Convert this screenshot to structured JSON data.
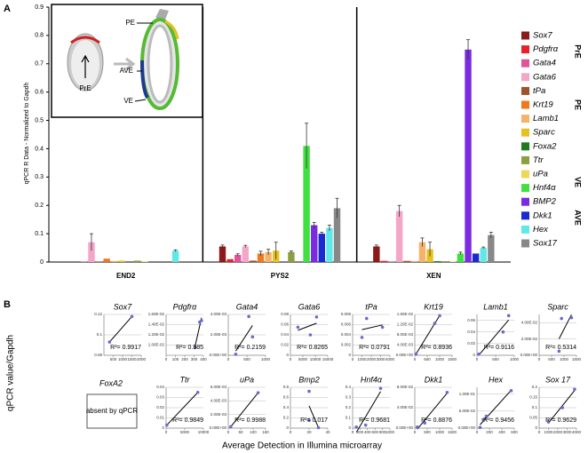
{
  "panel_labels": [
    "A",
    "B"
  ],
  "inset": {
    "labels": [
      "PrE",
      "PE",
      "AVE",
      "VE"
    ]
  },
  "absent": {
    "title": "FoxA2",
    "note": "absent by qPCR"
  },
  "shared": {
    "ylabel": "qPCR value/Gapdh",
    "xlabel": "Average Detection in Illumina microarray"
  },
  "legend_groups": [
    "PrE",
    "PE",
    "VE",
    "AVE"
  ],
  "chart_data": [
    {
      "type": "bar",
      "ylabel": "qPCR R Data - Normalized to Gapdh",
      "categories": [
        "END2",
        "PYS2",
        "XEN"
      ],
      "ylim": [
        0,
        0.9
      ],
      "yticks": [
        0,
        0.1,
        0.2,
        0.3,
        0.4,
        0.5,
        0.6,
        0.7,
        0.8,
        0.9
      ],
      "grid": false,
      "series": [
        {
          "name": "Sox7",
          "color": "#8b1a1a",
          "values": [
            0,
            0.055,
            0.055
          ],
          "errors": [
            null,
            0.005,
            0.005
          ]
        },
        {
          "name": "Pdgfrα",
          "color": "#e8202a",
          "values": [
            0,
            0.01,
            0.004
          ],
          "errors": [
            null,
            null,
            null
          ]
        },
        {
          "name": "Gata4",
          "color": "#e0559a",
          "values": [
            0.002,
            0.025,
            0.002
          ],
          "errors": [
            null,
            0.004,
            null
          ]
        },
        {
          "name": "Gata6",
          "color": "#f4a6c8",
          "values": [
            0.07,
            0.055,
            0.18
          ],
          "errors": [
            0.03,
            0.004,
            0.02
          ]
        },
        {
          "name": "tPa",
          "color": "#a0522d",
          "values": [
            0.002,
            0.005,
            0.004
          ],
          "errors": [
            null,
            null,
            null
          ]
        },
        {
          "name": "Krt19",
          "color": "#f07820",
          "values": [
            0.012,
            0.03,
            0.002
          ],
          "errors": [
            null,
            0.008,
            null
          ]
        },
        {
          "name": "Lamb1",
          "color": "#f5b26b",
          "values": [
            0.004,
            0.035,
            0.07
          ],
          "errors": [
            null,
            0.01,
            0.015
          ]
        },
        {
          "name": "Sparc",
          "color": "#e8c020",
          "values": [
            0.005,
            0.04,
            0.045
          ],
          "errors": [
            null,
            0.03,
            0.025
          ]
        },
        {
          "name": "Foxa2",
          "color": "#1f7a1f",
          "values": [
            0,
            0,
            0.003
          ],
          "errors": [
            null,
            null,
            null
          ]
        },
        {
          "name": "Ttr",
          "color": "#8aa040",
          "values": [
            0.005,
            0.035,
            0.003
          ],
          "errors": [
            null,
            0.004,
            null
          ]
        },
        {
          "name": "uPa",
          "color": "#ecd85a",
          "values": [
            0.002,
            0,
            0.002
          ],
          "errors": [
            null,
            null,
            null
          ]
        },
        {
          "name": "Hnf4α",
          "color": "#40e040",
          "values": [
            0,
            0.41,
            0.03
          ],
          "errors": [
            null,
            0.08,
            0.005
          ]
        },
        {
          "name": "BMP2",
          "color": "#7b2be0",
          "values": [
            0,
            0.13,
            0.75
          ],
          "errors": [
            null,
            0.01,
            0.035
          ]
        },
        {
          "name": "Dkk1",
          "color": "#1a2ad0",
          "values": [
            0,
            0.1,
            0.03
          ],
          "errors": [
            null,
            0.005,
            null
          ]
        },
        {
          "name": "Hex",
          "color": "#60e8e8",
          "values": [
            0.04,
            0.12,
            0.05
          ],
          "errors": [
            0.003,
            0.01,
            0.003
          ]
        },
        {
          "name": "Sox17",
          "color": "#888888",
          "values": [
            0,
            0.19,
            0.095
          ],
          "errors": [
            null,
            0.035,
            0.01
          ]
        }
      ]
    },
    {
      "type": "scatter",
      "title": "Sox7",
      "color": "#000",
      "fit": true,
      "r2": "R²= 0.9917",
      "xlim": [
        0,
        2000
      ],
      "xticks": [
        500,
        1000,
        1500,
        2000
      ],
      "ylim": [
        0.08,
        0.12
      ],
      "yticks": [
        0.08,
        0.1,
        0.12
      ],
      "x": [
        300,
        1500
      ],
      "y": [
        0.093,
        0.118
      ]
    },
    {
      "type": "scatter",
      "title": "Pdgfrα",
      "color": "#000",
      "fit": true,
      "r2": "R²= 0.985",
      "xlim": [
        0,
        400
      ],
      "xticks": [
        0,
        100,
        200,
        300,
        400
      ],
      "ylim": [
        0.008,
        0.016
      ],
      "yticks": [
        {
          "value": 0.01,
          "label": "1.00E-02"
        },
        {
          "value": 0.012,
          "label": "1.20E-02"
        },
        {
          "value": 0.014,
          "label": "1.40E-02"
        },
        {
          "value": 0.016,
          "label": "1.60E-02"
        }
      ],
      "x": [
        310,
        360,
        380
      ],
      "y": [
        0.0095,
        0.0145,
        0.0148
      ]
    },
    {
      "type": "scatter",
      "title": "Gata4",
      "color": "#e03030",
      "fit": true,
      "r2": "R²= 0.2159",
      "xlim": [
        0,
        1000
      ],
      "xticks": [
        0,
        500,
        1000
      ],
      "ylim": [
        0,
        0.004
      ],
      "yticks": [
        {
          "value": 0,
          "label": "0.00E+00"
        },
        {
          "value": 0.002,
          "label": "2.00E-03"
        },
        {
          "value": 0.004,
          "label": "4.00E-03"
        }
      ],
      "x": [
        200,
        550,
        650
      ],
      "y": [
        0.0001,
        0.0038,
        0.0018
      ]
    },
    {
      "type": "scatter",
      "title": "Gata6",
      "color": "#000",
      "fit": true,
      "r2": "R²= 0.8265",
      "xlim": [
        0,
        15000
      ],
      "xticks": [
        0,
        5000,
        10000,
        15000
      ],
      "ylim": [
        0,
        0.08
      ],
      "yticks": [
        0,
        0.02,
        0.04,
        0.06,
        0.08
      ],
      "x": [
        3000,
        8000,
        10500
      ],
      "y": [
        0.055,
        0.04,
        0.075
      ]
    },
    {
      "type": "scatter",
      "title": "tPa",
      "color": "#e03030",
      "fit": true,
      "r2": "R²= 0.0791",
      "xlim": [
        0,
        4000
      ],
      "xticks": [
        0,
        1000,
        2000,
        3000,
        4000
      ],
      "ylim": [
        0,
        0.008
      ],
      "yticks": [
        0,
        0.002,
        0.004,
        0.006,
        0.008
      ],
      "x": [
        1000,
        1500,
        3200
      ],
      "y": [
        0.0035,
        0.0072,
        0.0055
      ]
    },
    {
      "type": "scatter",
      "title": "Krt19",
      "color": "#000",
      "fit": true,
      "r2": "R²= 0.8936",
      "xlim": [
        0,
        1500
      ],
      "xticks": [
        0,
        500,
        1000,
        1500
      ],
      "ylim": [
        0,
        0.016
      ],
      "yticks": [
        {
          "value": 0,
          "label": "0.00E+00"
        },
        {
          "value": 0.004,
          "label": "4.00E-03"
        },
        {
          "value": 0.008,
          "label": "8.00E-03"
        },
        {
          "value": 0.012,
          "label": "1.20E-02"
        },
        {
          "value": 0.016,
          "label": "1.60E-02"
        }
      ],
      "x": [
        50,
        800,
        1000
      ],
      "y": [
        0.0005,
        0.0125,
        0.0155
      ]
    },
    {
      "type": "scatter",
      "title": "Lamb1",
      "color": "#000",
      "fit": true,
      "r2": "R²= 0.9116",
      "xlim": [
        0,
        1000
      ],
      "xticks": [
        0,
        500,
        1000
      ],
      "ylim": [
        0,
        0.07
      ],
      "yticks": [
        0,
        0.02,
        0.04,
        0.06
      ],
      "x": [
        50,
        700,
        850
      ],
      "y": [
        0.002,
        0.04,
        0.068
      ]
    },
    {
      "type": "scatter",
      "title": "Sparc",
      "color": "#000",
      "fit": true,
      "r2": "R²= 0.5314",
      "xlim": [
        0,
        1500
      ],
      "xticks": [
        0,
        500,
        1000,
        1500
      ],
      "ylim": [
        0,
        0.05
      ],
      "yticks": [
        {
          "value": 0,
          "label": "0.00E+00"
        },
        {
          "value": 0.02,
          "label": "2.00E-02"
        },
        {
          "value": 0.04,
          "label": "4.00E-02"
        }
      ],
      "x": [
        800,
        900,
        1300
      ],
      "y": [
        0.005,
        0.045,
        0.046
      ]
    },
    {
      "type": "scatter",
      "title": "Ttr",
      "color": "#000",
      "fit": true,
      "r2": "R²= 0.9849",
      "xlim": [
        0,
        10000
      ],
      "xticks": [
        0,
        5000,
        10000
      ],
      "ylim": [
        0,
        0.04
      ],
      "yticks": [
        0,
        0.01,
        0.02,
        0.03,
        0.04
      ],
      "x": [
        200,
        8500
      ],
      "y": [
        0.003,
        0.035
      ]
    },
    {
      "type": "scatter",
      "title": "uPa",
      "color": "#000",
      "fit": true,
      "r2": "R²= 0.9988",
      "xlim": [
        0,
        150
      ],
      "xticks": [
        0,
        50,
        100,
        150
      ],
      "ylim": [
        0,
        0.006
      ],
      "yticks": [
        {
          "value": 0,
          "label": "0.00E+00"
        },
        {
          "value": 0.002,
          "label": "2.00E-03"
        },
        {
          "value": 0.004,
          "label": "4.00E-03"
        },
        {
          "value": 0.006,
          "label": "6.00E-03"
        }
      ],
      "x": [
        10,
        120
      ],
      "y": [
        0.0002,
        0.0052
      ]
    },
    {
      "type": "scatter",
      "title": "Bmp2",
      "color": "#e03030",
      "fit": true,
      "r2": "R²= 0.017",
      "xlim": [
        0,
        40
      ],
      "xticks": [
        0,
        20,
        40
      ],
      "ylim": [
        0,
        0.8
      ],
      "yticks": [
        0,
        0.2,
        0.4,
        0.6,
        0.8
      ],
      "x": [
        20,
        20,
        30
      ],
      "y": [
        0.72,
        0.15,
        0.01
      ]
    },
    {
      "type": "scatter",
      "title": "Hnf4α",
      "color": "#000",
      "fit": true,
      "r2": "R²= 0.9681",
      "xlim": [
        0,
        1000
      ],
      "xticks": [
        0,
        200,
        400,
        600,
        800,
        1000
      ],
      "ylim": [
        0,
        0.4
      ],
      "yticks": [
        0,
        0.1,
        0.2,
        0.3,
        0.4
      ],
      "x": [
        100,
        350,
        750
      ],
      "y": [
        0.01,
        0.03,
        0.39
      ]
    },
    {
      "type": "scatter",
      "title": "Dkk1",
      "color": "#000",
      "fit": true,
      "r2": "R²= 0.8876",
      "xlim": [
        0,
        1500
      ],
      "xticks": [
        0,
        500,
        1000,
        1500
      ],
      "ylim": [
        0,
        0.08
      ],
      "yticks": [
        {
          "value": 0,
          "label": "0.00E+00"
        },
        {
          "value": 0.04,
          "label": "4.00E-02"
        },
        {
          "value": 0.08,
          "label": "8.00E-02"
        }
      ],
      "x": [
        100,
        400,
        1300
      ],
      "y": [
        0.002,
        0.01,
        0.07
      ]
    },
    {
      "type": "scatter",
      "title": "Hex",
      "color": "#000",
      "fit": true,
      "r2": "R²= 0.9456",
      "xlim": [
        0,
        600
      ],
      "xticks": [
        0,
        200,
        400,
        600
      ],
      "ylim": [
        0,
        0.12
      ],
      "yticks": [
        {
          "value": 0,
          "label": "0.00E+00"
        },
        {
          "value": 0.05,
          "label": "5.00E-02"
        },
        {
          "value": 0.1,
          "label": "1.00E-01"
        }
      ],
      "x": [
        50,
        100,
        150,
        550
      ],
      "y": [
        0.002,
        0.025,
        0.035,
        0.11
      ]
    },
    {
      "type": "scatter",
      "title": "Sox 17",
      "color": "#000",
      "fit": true,
      "r2": "R²= 0.9629",
      "xlim": [
        0,
        4000
      ],
      "xticks": [
        0,
        1000,
        2000,
        3000,
        4000
      ],
      "ylim": [
        0,
        0.2
      ],
      "yticks": [
        0,
        0.05,
        0.1,
        0.15,
        0.2
      ],
      "x": [
        1000,
        2500,
        3800
      ],
      "y": [
        0.03,
        0.1,
        0.19
      ]
    }
  ]
}
